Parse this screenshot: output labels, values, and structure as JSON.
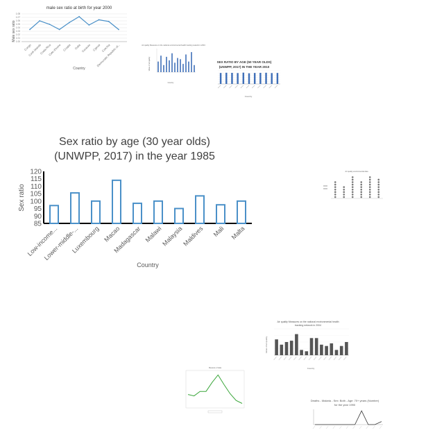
{
  "charts": {
    "line_male_ratio": {
      "title": "male sex ratio at birth for year 2000",
      "xlabel": "Country",
      "ylabel": "Male sex ratio",
      "colors": {
        "line": "#4a90c8"
      }
    },
    "bar_small_blue": {
      "title": "Air quality Measures on the national environmental health tracking network in 2004",
      "xlabel": "Country",
      "ylabel": "Value of air quality"
    },
    "bar_sex_ratio_50": {
      "title": "SEX RATIO BY AGE (50 YEAR OLDS) (UNWPP, 2017) IN THE YEAR 2010",
      "xlabel": "Country",
      "colors": {
        "bar": "#3f6fb8"
      }
    },
    "main": {
      "title_line1": "Sex ratio by age (30 year olds)",
      "title_line2": "(UNWPP, 2017) in the year 1985",
      "xlabel": "Country",
      "ylabel": "Sex ratio",
      "colors": {
        "bar_stroke": "#4a90c8"
      }
    },
    "dot_chart": {
      "title": "Air quality environmental data"
    },
    "bar_gray": {
      "title_line1": "Air quality Measures on the national environmental health",
      "title_line2": "tracking network in 2004",
      "xlabel": "Country",
      "ylabel": "Value of air quality",
      "colors": {
        "bar": "#555555"
      }
    },
    "line_green": {
      "title": "Measure of data",
      "colors": {
        "line": "#3aa63a"
      }
    },
    "line_deaths": {
      "title_line1": "Deaths - Malaria - Sex: Both - Age: 70+ years (Number)",
      "title_line2": "for the year 1990"
    }
  },
  "chart_data": [
    {
      "type": "line",
      "title": "male sex ratio at birth for year 2000",
      "xlabel": "Country",
      "ylabel": "Male sex ratio",
      "categories": [
        "Congo",
        "Cook Islands",
        "Costa Rica",
        "Cote d'Ivoire",
        "Croatia",
        "Cuba",
        "Curacao",
        "Cyprus",
        "Czechia",
        "Democratic Republic of..."
      ],
      "values": [
        1.035,
        1.06,
        1.05,
        1.035,
        1.055,
        1.072,
        1.048,
        1.063,
        1.058,
        1.035
      ],
      "ylim": [
        1.0,
        1.08
      ],
      "yticks": [
        1.0,
        1.01,
        1.02,
        1.03,
        1.04,
        1.05,
        1.06,
        1.07,
        1.08
      ]
    },
    {
      "type": "bar",
      "title": "Air quality Measures on the national environmental health tracking network in 2004",
      "values": [
        9,
        14,
        6,
        13,
        10,
        16,
        8,
        12,
        11,
        7,
        15,
        9,
        17,
        6
      ],
      "ylim": [
        0,
        20
      ]
    },
    {
      "type": "bar",
      "title": "SEX RATIO BY AGE (50 YEAR OLDS) (UNWPP, 2017) IN THE YEAR 2010",
      "xlabel": "Country",
      "values": [
        100,
        102,
        101,
        99,
        103,
        97,
        100,
        101,
        102,
        99,
        100
      ],
      "ylim": [
        0,
        120
      ]
    },
    {
      "type": "bar",
      "title": "Sex ratio by age (30 year olds) (UNWPP, 2017) in the year 1985",
      "xlabel": "Country",
      "ylabel": "Sex ratio",
      "categories": [
        "Low-income...",
        "Lower-middle-...",
        "Luxembourg",
        "Macao",
        "Madagascar",
        "Malawi",
        "Malaysia",
        "Maldives",
        "Mali",
        "Malta"
      ],
      "values": [
        97,
        105.5,
        100,
        114,
        98.5,
        100,
        95,
        103.5,
        97.5,
        100
      ],
      "ylim": [
        85,
        120
      ],
      "yticks": [
        85,
        90,
        95,
        100,
        105,
        110,
        115,
        120
      ],
      "grid": false
    },
    {
      "type": "scatter",
      "title": "Air quality environmental data",
      "values": [
        7,
        5,
        9,
        7,
        9,
        8
      ],
      "ylim": [
        0,
        10
      ]
    },
    {
      "type": "bar",
      "title": "Air quality Measures on the national environmental health tracking network in 2004",
      "xlabel": "Country",
      "ylabel": "Value of air quality",
      "values": [
        12,
        8,
        10,
        11,
        16,
        4,
        3,
        13,
        13,
        8,
        7,
        9,
        4,
        7,
        10
      ],
      "ylim": [
        0,
        20
      ]
    },
    {
      "type": "line",
      "title": "Measure of data",
      "values": [
        18,
        16,
        22,
        22,
        34,
        44,
        31,
        19,
        10,
        6
      ],
      "ylim": [
        0,
        50
      ]
    },
    {
      "type": "line",
      "title": "Deaths - Malaria - Sex: Both - Age: 70+ years (Number) for the year 1990",
      "values": [
        0,
        0,
        0,
        0,
        0,
        0,
        0,
        18,
        0,
        0,
        4
      ],
      "ylim": [
        0,
        20
      ]
    }
  ]
}
